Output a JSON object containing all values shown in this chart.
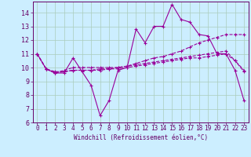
{
  "xlabel": "Windchill (Refroidissement éolien,°C)",
  "background_color": "#cceeff",
  "grid_color": "#aaccbb",
  "line_color": "#990099",
  "ylim": [
    6,
    14.8
  ],
  "xlim": [
    -0.5,
    23.5
  ],
  "yticks": [
    6,
    7,
    8,
    9,
    10,
    11,
    12,
    13,
    14
  ],
  "xticks": [
    0,
    1,
    2,
    3,
    4,
    5,
    6,
    7,
    8,
    9,
    10,
    11,
    12,
    13,
    14,
    15,
    16,
    17,
    18,
    19,
    20,
    21,
    22,
    23
  ],
  "series": [
    [
      11.0,
      9.9,
      9.6,
      9.6,
      10.7,
      9.7,
      8.7,
      6.5,
      7.6,
      9.8,
      10.0,
      12.8,
      11.8,
      13.0,
      13.0,
      14.6,
      13.5,
      13.3,
      12.4,
      12.3,
      11.0,
      11.0,
      9.8,
      7.6
    ],
    [
      11.0,
      9.9,
      9.6,
      9.8,
      10.0,
      10.0,
      10.0,
      10.0,
      10.0,
      10.0,
      10.1,
      10.3,
      10.5,
      10.7,
      10.8,
      11.0,
      11.2,
      11.5,
      11.8,
      12.0,
      12.2,
      12.4,
      12.4,
      12.4
    ],
    [
      11.0,
      9.9,
      9.7,
      9.7,
      9.8,
      9.8,
      9.8,
      9.8,
      9.9,
      9.9,
      10.0,
      10.1,
      10.2,
      10.3,
      10.4,
      10.5,
      10.6,
      10.7,
      10.7,
      10.8,
      10.9,
      11.0,
      10.5,
      9.8
    ],
    [
      11.0,
      9.9,
      9.6,
      9.7,
      9.8,
      9.8,
      9.8,
      9.9,
      9.9,
      10.0,
      10.1,
      10.2,
      10.3,
      10.4,
      10.5,
      10.6,
      10.7,
      10.8,
      10.9,
      11.0,
      11.1,
      11.2,
      10.5,
      9.7
    ]
  ],
  "xlabel_fontsize": 5.5,
  "tick_fontsize": 5.5,
  "ytick_fontsize": 6.0
}
